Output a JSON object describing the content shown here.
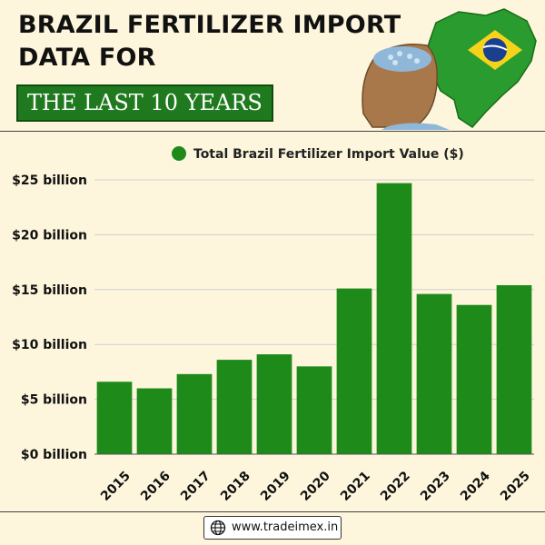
{
  "header": {
    "title_line1": "BRAZIL FERTILIZER IMPORT",
    "title_line2": "DATA FOR",
    "subtitle": "THE LAST 10 YEARS"
  },
  "footer": {
    "website": "www.tradeimex.in"
  },
  "colors": {
    "bar": "#1e8a1a",
    "accent_dark_green": "#1f7a1f",
    "background": "#fdf6dc"
  },
  "chart_data": {
    "type": "bar",
    "legend": "top-center",
    "grid": true,
    "categories": [
      "2015",
      "2016",
      "2017",
      "2018",
      "2019",
      "2020",
      "2021",
      "2022",
      "2023",
      "2024",
      "2025"
    ],
    "series": [
      {
        "name": "Total Brazil Fertilizer Import Value ($)",
        "values": [
          6.6,
          6.0,
          7.3,
          8.6,
          9.1,
          8.0,
          15.1,
          24.7,
          14.6,
          13.6,
          15.4
        ]
      }
    ],
    "ylim": [
      0,
      25
    ],
    "y_ticks": [
      0,
      5,
      10,
      15,
      20,
      25
    ],
    "y_tick_labels": [
      "$0 billion",
      "$5 billion",
      "$10 billion",
      "$15 billion",
      "$20 billion",
      "$25 billion"
    ]
  }
}
